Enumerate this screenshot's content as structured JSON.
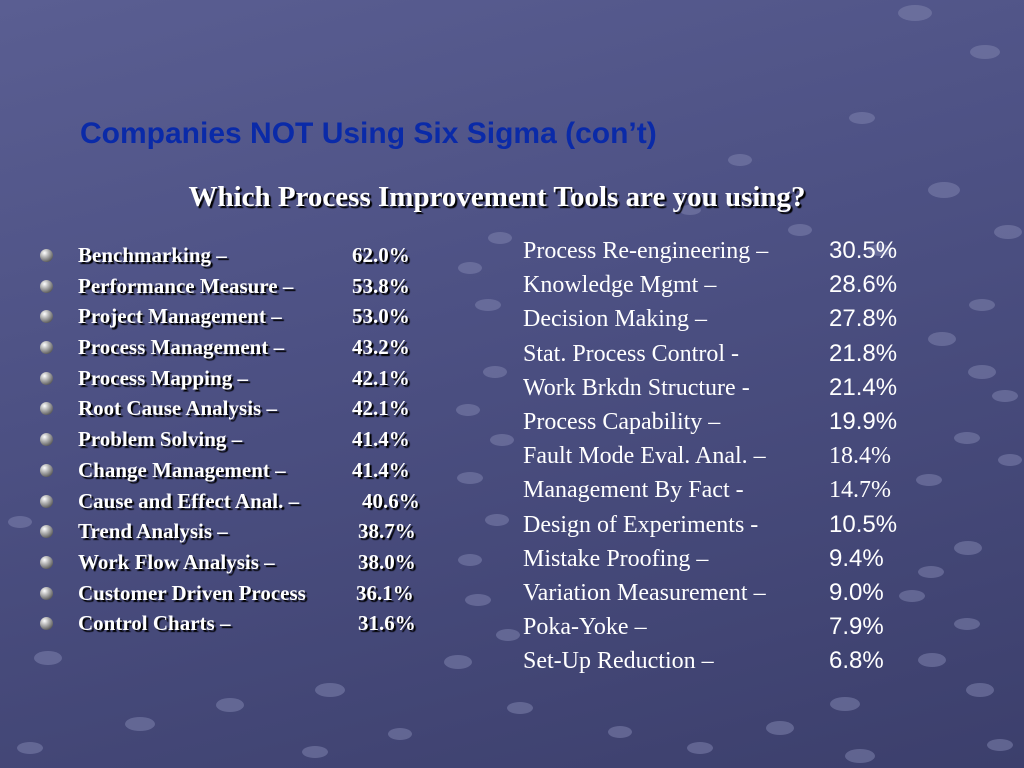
{
  "slide": {
    "title": "Companies NOT Using Six Sigma (con’t)",
    "subtitle": "Which Process Improvement Tools are you using?"
  },
  "left_list": [
    {
      "label": "Benchmarking –",
      "value": "62.0%"
    },
    {
      "label": "Performance Measure –",
      "value": "53.8%"
    },
    {
      "label": "Project Management –",
      "value": "53.0%"
    },
    {
      "label": "Process Management –",
      "value": "43.2%"
    },
    {
      "label": "Process Mapping –",
      "value": "42.1%"
    },
    {
      "label": "Root Cause Analysis –",
      "value": "42.1%"
    },
    {
      "label": "Problem Solving –",
      "value": "41.4%"
    },
    {
      "label": "Change Management –",
      "value": "41.4%"
    },
    {
      "label": "Cause and Effect Anal. –",
      "value": "40.6%"
    },
    {
      "label": "Trend Analysis –",
      "value": "38.7%"
    },
    {
      "label": "Work Flow Analysis –",
      "value": "38.0%"
    },
    {
      "label": "Customer Driven Process",
      "value": "36.1%"
    },
    {
      "label": "Control Charts –",
      "value": "31.6%"
    }
  ],
  "right_list": [
    {
      "label": "Process Re-engineering –",
      "value": "30.5%"
    },
    {
      "label": "Knowledge Mgmt –",
      "value": "28.6%"
    },
    {
      "label": "Decision Making –",
      "value": "27.8%"
    },
    {
      "label": "Stat. Process Control -",
      "value": "21.8%"
    },
    {
      "label": "Work Brkdn Structure -",
      "value": "21.4%"
    },
    {
      "label": "Process Capability –",
      "value": "19.9%"
    },
    {
      "label": "Fault Mode Eval. Anal. –",
      "value": "18.4%"
    },
    {
      "label": "Management By Fact -",
      "value": "14.7%"
    },
    {
      "label": "Design of Experiments -",
      "value": "10.5%"
    },
    {
      "label": "Mistake Proofing –",
      "value": "9.4%"
    },
    {
      "label": "Variation Measurement –",
      "value": "9.0%"
    },
    {
      "label": "Poka-Yoke –",
      "value": "7.9%"
    },
    {
      "label": "Set-Up Reduction –",
      "value": "6.8%"
    }
  ],
  "colors": {
    "background": "#4d5184",
    "title": "#0a2aa8",
    "text": "#ffffff",
    "dots": "#7e82ad"
  },
  "icons": {
    "bullet": "sphere-bullet-icon"
  }
}
